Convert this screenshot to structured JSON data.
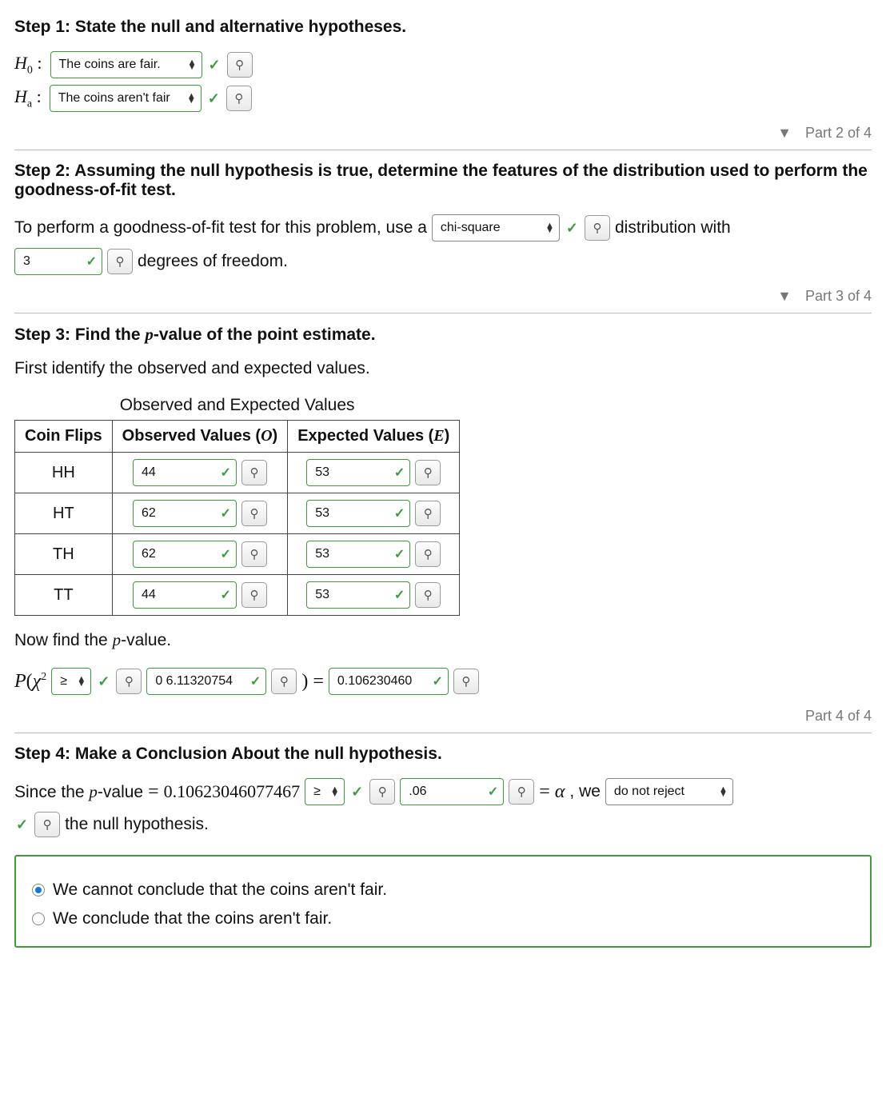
{
  "step1": {
    "title": "Step 1: State the null and alternative hypotheses.",
    "h0_label": "H",
    "h0_sub": "0",
    "h0_colon": " : ",
    "h0_value": "The coins are fair.",
    "ha_label": "H",
    "ha_sub": "a",
    "ha_colon": " : ",
    "ha_value": "The coins aren't fair"
  },
  "part2_label": "Part 2 of 4",
  "step2": {
    "title": "Step 2: Assuming the null hypothesis is true, determine the features of the distribution used to perform the goodness-of-fit test.",
    "lead": "To perform a goodness-of-fit test for this problem, use a",
    "dist_value": "chi-square",
    "tail1": "distribution with",
    "df_value": "3",
    "tail2": "degrees of freedom."
  },
  "part3_label": "Part 3 of 4",
  "step3": {
    "title_pre": "Step 3: Find the ",
    "title_p": "p",
    "title_post": "-value of the point estimate.",
    "intro": "First identify the observed and expected values.",
    "caption": "Observed and Expected Values",
    "col1": "Coin Flips",
    "col2_pre": "Observed Values (",
    "col2_var": "O",
    "col2_post": ")",
    "col3_pre": "Expected Values (",
    "col3_var": "E",
    "col3_post": ")",
    "rows": [
      {
        "flip": "HH",
        "obs": "44",
        "exp": "53"
      },
      {
        "flip": "HT",
        "obs": "62",
        "exp": "53"
      },
      {
        "flip": "TH",
        "obs": "62",
        "exp": "53"
      },
      {
        "flip": "TT",
        "obs": "44",
        "exp": "53"
      }
    ],
    "now_pre": "Now find the ",
    "now_p": "p",
    "now_post": "-value.",
    "P": "P",
    "chi": "χ",
    "sq": "2",
    "op_value": "≥",
    "chi_stat": "0 6.11320754",
    "eq": "=",
    "pval": "0.106230460"
  },
  "part4_label": "Part 4 of 4",
  "step4": {
    "title": "Step 4: Make a Conclusion About the null hypothesis.",
    "since_pre": "Since the ",
    "since_p": "p",
    "since_mid": "-value",
    "eq": "=",
    "pval_full": "0.10623046077467",
    "cmp_value": "≥",
    "alpha_input": ".06",
    "eq2": "=",
    "alpha_sym": "α",
    "comma_we": ", we",
    "decision": "do not reject",
    "tail": "the null hypothesis.",
    "opt1": "We cannot conclude that the coins aren't fair.",
    "opt2": "We conclude that the coins aren't fair.",
    "selected": 0
  },
  "colors": {
    "correct": "#3a9c3a",
    "border": "#bbbbbb",
    "text": "#111111",
    "muted": "#777777",
    "radio_fill": "#1277d8"
  }
}
